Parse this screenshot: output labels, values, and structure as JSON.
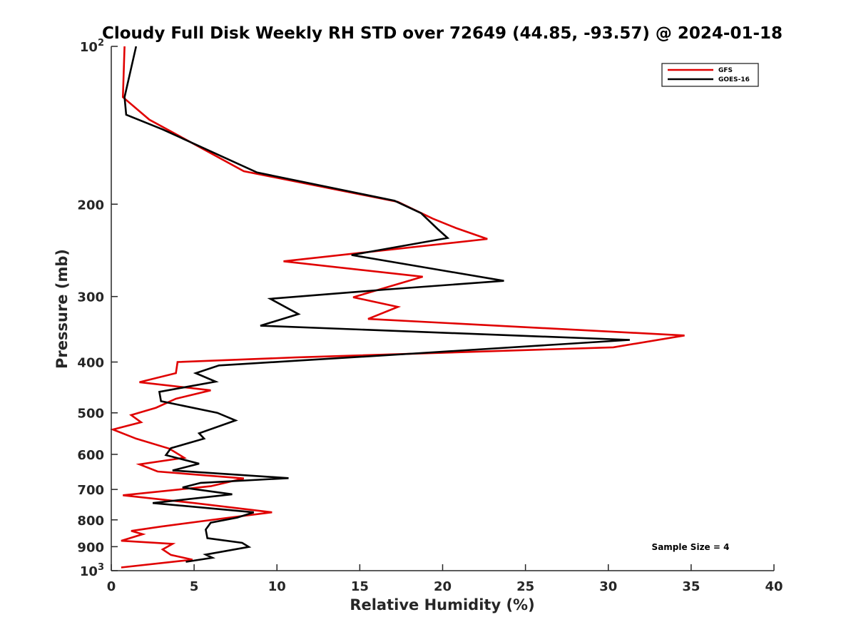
{
  "chart_data": {
    "type": "line",
    "title": "Cloudy Full Disk Weekly RH STD over 72649 (44.85, -93.57) @ 2024-01-18",
    "xlabel": "Relative Humidity (%)",
    "ylabel": "Pressure (mb)",
    "xlim": [
      0,
      40
    ],
    "ylim": [
      100,
      1000
    ],
    "yscale": "log",
    "y_reversed": true,
    "grid": false,
    "legend_position": "top-right",
    "x_ticks": [
      "0",
      "5",
      "10",
      "15",
      "20",
      "25",
      "30",
      "35",
      "40"
    ],
    "y_ticks": [
      {
        "value": 100,
        "base": "10",
        "exp": "2"
      },
      {
        "value": 200,
        "label": "200"
      },
      {
        "value": 300,
        "label": "300"
      },
      {
        "value": 400,
        "label": "400"
      },
      {
        "value": 500,
        "label": "500"
      },
      {
        "value": 600,
        "label": "600"
      },
      {
        "value": 700,
        "label": "700"
      },
      {
        "value": 800,
        "label": "800"
      },
      {
        "value": 900,
        "label": "900"
      },
      {
        "value": 1000,
        "base": "10",
        "exp": "3"
      }
    ],
    "annotation": "Sample Size = 4",
    "series": [
      {
        "name": "GFS",
        "color": "#e00000",
        "points": [
          [
            0.8,
            100
          ],
          [
            0.7,
            125
          ],
          [
            2.3,
            138
          ],
          [
            8.0,
            173
          ],
          [
            17.3,
            198
          ],
          [
            19.4,
            213
          ],
          [
            20.8,
            222
          ],
          [
            22.7,
            233
          ],
          [
            10.4,
            257
          ],
          [
            18.8,
            275
          ],
          [
            14.6,
            301
          ],
          [
            17.3,
            314
          ],
          [
            15.5,
            331
          ],
          [
            34.6,
            356
          ],
          [
            30.3,
            375
          ],
          [
            11.1,
            392
          ],
          [
            4.0,
            400
          ],
          [
            3.9,
            420
          ],
          [
            1.7,
            437
          ],
          [
            6.0,
            453
          ],
          [
            3.9,
            470
          ],
          [
            2.7,
            489
          ],
          [
            1.2,
            505
          ],
          [
            1.8,
            521
          ],
          [
            0.1,
            538
          ],
          [
            1.5,
            560
          ],
          [
            3.5,
            585
          ],
          [
            4.4,
            609
          ],
          [
            1.7,
            627
          ],
          [
            2.8,
            647
          ],
          [
            8.0,
            667
          ],
          [
            6.0,
            690
          ],
          [
            0.7,
            718
          ],
          [
            5.0,
            743
          ],
          [
            9.7,
            774
          ],
          [
            7.0,
            793
          ],
          [
            3.0,
            824
          ],
          [
            1.2,
            840
          ],
          [
            1.9,
            852
          ],
          [
            0.6,
            877
          ],
          [
            3.7,
            889
          ],
          [
            3.1,
            911
          ],
          [
            3.6,
            933
          ],
          [
            4.9,
            953
          ],
          [
            0.6,
            986
          ]
        ]
      },
      {
        "name": "GOES-16",
        "color": "#000000",
        "points": [
          [
            1.5,
            100
          ],
          [
            0.8,
            125
          ],
          [
            0.9,
            135
          ],
          [
            3.1,
            144
          ],
          [
            8.8,
            174
          ],
          [
            17.1,
            197
          ],
          [
            18.7,
            208
          ],
          [
            19.7,
            223
          ],
          [
            20.3,
            232
          ],
          [
            14.5,
            250
          ],
          [
            23.7,
            280
          ],
          [
            16.5,
            291
          ],
          [
            9.6,
            303
          ],
          [
            11.3,
            324
          ],
          [
            9.0,
            341
          ],
          [
            31.3,
            363
          ],
          [
            17.3,
            387
          ],
          [
            6.5,
            406
          ],
          [
            5.1,
            420
          ],
          [
            6.3,
            436
          ],
          [
            2.9,
            456
          ],
          [
            3.0,
            475
          ],
          [
            6.4,
            500
          ],
          [
            7.5,
            517
          ],
          [
            5.3,
            547
          ],
          [
            5.6,
            560
          ],
          [
            3.6,
            584
          ],
          [
            3.3,
            602
          ],
          [
            5.3,
            625
          ],
          [
            3.7,
            644
          ],
          [
            10.7,
            666
          ],
          [
            5.4,
            680
          ],
          [
            4.3,
            694
          ],
          [
            7.3,
            715
          ],
          [
            2.5,
            743
          ],
          [
            8.6,
            774
          ],
          [
            7.6,
            792
          ],
          [
            6.0,
            810
          ],
          [
            5.7,
            835
          ],
          [
            5.8,
            867
          ],
          [
            7.9,
            885
          ],
          [
            8.3,
            901
          ],
          [
            5.7,
            932
          ],
          [
            6.1,
            945
          ],
          [
            4.5,
            962
          ]
        ]
      }
    ]
  }
}
